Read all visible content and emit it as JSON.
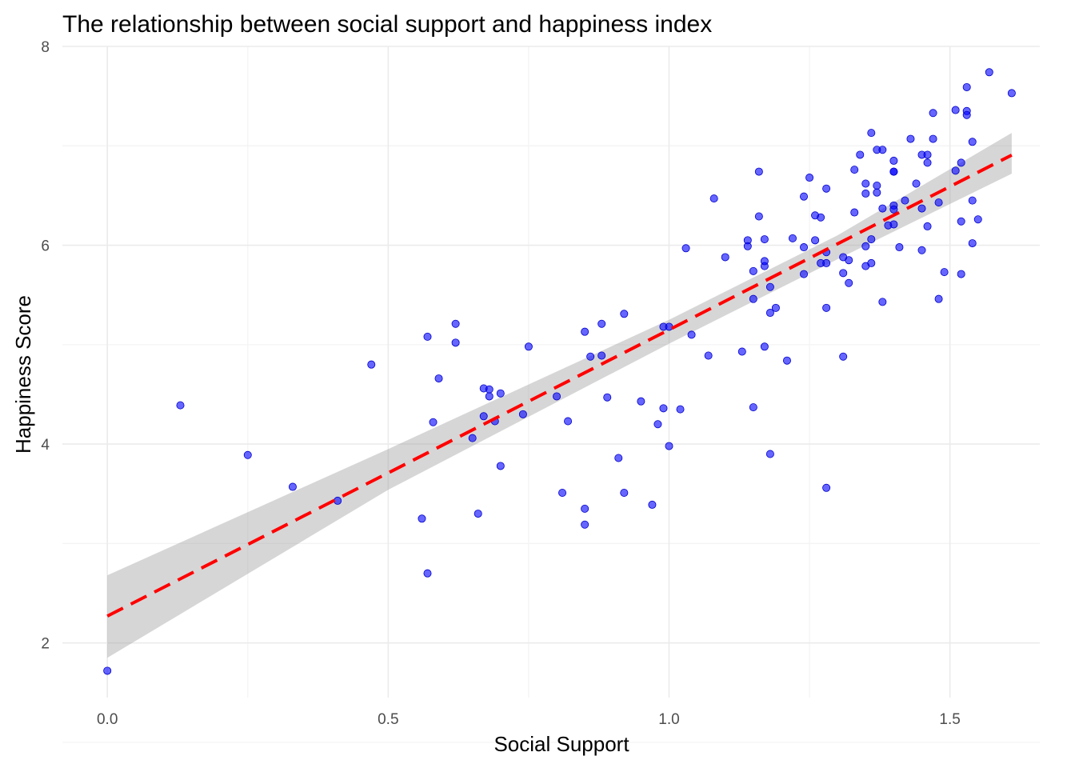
{
  "chart_data": {
    "type": "scatter",
    "title": "The relationship between social support and happiness index",
    "xlabel": "Social Support",
    "ylabel": "Happiness Score",
    "xlim": [
      -0.08,
      1.66
    ],
    "ylim": [
      1.45,
      8.0
    ],
    "x_ticks": [
      0.0,
      0.5,
      1.0,
      1.5
    ],
    "x_tick_labels": [
      "0.0",
      "0.5",
      "1.0",
      "1.5"
    ],
    "y_ticks": [
      2,
      4,
      6,
      8
    ],
    "y_tick_labels": [
      "2",
      "4",
      "6",
      "8"
    ],
    "grid": true,
    "legend": "none",
    "colors": {
      "points": "#0000ff",
      "fit_line": "#ff0000",
      "ribbon": "#999999"
    },
    "trend_line": {
      "type": "linear",
      "intercept": 2.27,
      "slope": 2.88,
      "x_range": [
        0.0,
        1.61
      ],
      "confidence_band": [
        {
          "x": 0.0,
          "lower": 1.85,
          "upper": 2.68
        },
        {
          "x": 0.5,
          "lower": 3.54,
          "upper": 3.95
        },
        {
          "x": 1.0,
          "lower": 5.01,
          "upper": 5.25
        },
        {
          "x": 1.3,
          "lower": 5.86,
          "upper": 6.1
        },
        {
          "x": 1.61,
          "lower": 6.72,
          "upper": 7.13
        }
      ]
    },
    "points": [
      [
        0.0,
        1.72
      ],
      [
        0.13,
        4.39
      ],
      [
        0.25,
        3.89
      ],
      [
        0.33,
        3.57
      ],
      [
        0.41,
        3.43
      ],
      [
        0.47,
        4.8
      ],
      [
        0.56,
        3.25
      ],
      [
        0.57,
        5.08
      ],
      [
        0.57,
        2.7
      ],
      [
        0.58,
        4.22
      ],
      [
        0.59,
        4.66
      ],
      [
        0.62,
        5.21
      ],
      [
        0.62,
        5.02
      ],
      [
        0.65,
        4.06
      ],
      [
        0.66,
        3.3
      ],
      [
        0.67,
        4.56
      ],
      [
        0.67,
        4.28
      ],
      [
        0.68,
        4.55
      ],
      [
        0.68,
        4.48
      ],
      [
        0.69,
        4.23
      ],
      [
        0.7,
        4.51
      ],
      [
        0.7,
        3.78
      ],
      [
        0.74,
        4.3
      ],
      [
        0.75,
        4.98
      ],
      [
        0.8,
        4.48
      ],
      [
        0.81,
        3.51
      ],
      [
        0.82,
        4.23
      ],
      [
        0.85,
        5.13
      ],
      [
        0.85,
        3.35
      ],
      [
        0.85,
        3.19
      ],
      [
        0.86,
        4.88
      ],
      [
        0.88,
        4.89
      ],
      [
        0.88,
        5.21
      ],
      [
        0.89,
        4.47
      ],
      [
        0.91,
        3.86
      ],
      [
        0.92,
        5.31
      ],
      [
        0.92,
        3.51
      ],
      [
        0.95,
        4.43
      ],
      [
        0.97,
        3.39
      ],
      [
        0.98,
        4.2
      ],
      [
        0.99,
        4.36
      ],
      [
        0.99,
        5.18
      ],
      [
        1.0,
        3.98
      ],
      [
        1.0,
        5.18
      ],
      [
        1.02,
        4.35
      ],
      [
        1.03,
        5.97
      ],
      [
        1.04,
        5.1
      ],
      [
        1.07,
        4.89
      ],
      [
        1.08,
        6.47
      ],
      [
        1.1,
        5.88
      ],
      [
        1.13,
        4.93
      ],
      [
        1.14,
        6.05
      ],
      [
        1.14,
        5.99
      ],
      [
        1.15,
        5.74
      ],
      [
        1.15,
        4.37
      ],
      [
        1.15,
        5.46
      ],
      [
        1.16,
        6.74
      ],
      [
        1.16,
        6.29
      ],
      [
        1.17,
        4.98
      ],
      [
        1.17,
        6.06
      ],
      [
        1.17,
        5.79
      ],
      [
        1.17,
        5.84
      ],
      [
        1.18,
        3.9
      ],
      [
        1.18,
        5.32
      ],
      [
        1.18,
        5.58
      ],
      [
        1.19,
        5.37
      ],
      [
        1.21,
        4.84
      ],
      [
        1.22,
        6.07
      ],
      [
        1.24,
        6.49
      ],
      [
        1.24,
        5.98
      ],
      [
        1.24,
        5.71
      ],
      [
        1.25,
        6.68
      ],
      [
        1.26,
        6.3
      ],
      [
        1.26,
        6.05
      ],
      [
        1.27,
        6.28
      ],
      [
        1.27,
        5.82
      ],
      [
        1.28,
        6.57
      ],
      [
        1.28,
        5.93
      ],
      [
        1.28,
        5.82
      ],
      [
        1.28,
        5.37
      ],
      [
        1.28,
        3.56
      ],
      [
        1.31,
        4.88
      ],
      [
        1.31,
        5.88
      ],
      [
        1.31,
        5.72
      ],
      [
        1.32,
        5.62
      ],
      [
        1.32,
        5.85
      ],
      [
        1.33,
        6.76
      ],
      [
        1.33,
        6.33
      ],
      [
        1.34,
        6.91
      ],
      [
        1.35,
        6.62
      ],
      [
        1.35,
        6.52
      ],
      [
        1.35,
        5.99
      ],
      [
        1.35,
        5.79
      ],
      [
        1.36,
        7.13
      ],
      [
        1.36,
        6.06
      ],
      [
        1.36,
        5.82
      ],
      [
        1.37,
        6.6
      ],
      [
        1.37,
        6.53
      ],
      [
        1.37,
        6.96
      ],
      [
        1.38,
        6.96
      ],
      [
        1.38,
        6.37
      ],
      [
        1.38,
        5.43
      ],
      [
        1.39,
        6.2
      ],
      [
        1.4,
        6.85
      ],
      [
        1.4,
        6.74
      ],
      [
        1.4,
        6.74
      ],
      [
        1.4,
        6.4
      ],
      [
        1.4,
        6.36
      ],
      [
        1.4,
        6.21
      ],
      [
        1.41,
        5.98
      ],
      [
        1.42,
        6.45
      ],
      [
        1.43,
        7.07
      ],
      [
        1.44,
        6.62
      ],
      [
        1.45,
        6.91
      ],
      [
        1.45,
        6.37
      ],
      [
        1.45,
        5.95
      ],
      [
        1.46,
        6.83
      ],
      [
        1.46,
        6.91
      ],
      [
        1.46,
        6.19
      ],
      [
        1.47,
        7.07
      ],
      [
        1.47,
        7.33
      ],
      [
        1.48,
        5.46
      ],
      [
        1.48,
        6.43
      ],
      [
        1.49,
        5.73
      ],
      [
        1.51,
        7.36
      ],
      [
        1.51,
        6.75
      ],
      [
        1.52,
        6.24
      ],
      [
        1.52,
        5.71
      ],
      [
        1.52,
        6.83
      ],
      [
        1.53,
        7.35
      ],
      [
        1.53,
        7.31
      ],
      [
        1.53,
        7.59
      ],
      [
        1.54,
        7.04
      ],
      [
        1.54,
        6.45
      ],
      [
        1.54,
        6.02
      ],
      [
        1.55,
        6.26
      ],
      [
        1.57,
        7.74
      ],
      [
        1.61,
        7.53
      ]
    ]
  }
}
